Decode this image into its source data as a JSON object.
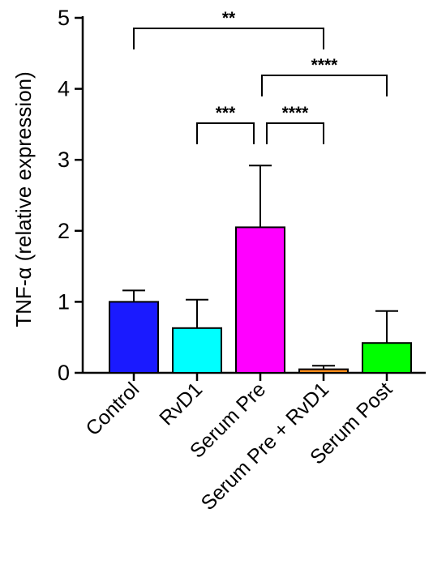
{
  "chart_data": {
    "type": "bar",
    "ylabel": "TNF-α (relative expression)",
    "xlabel": "",
    "ylim": [
      0,
      5
    ],
    "yticks": [
      0,
      1,
      2,
      3,
      4,
      5
    ],
    "categories": [
      "Control",
      "RvD1",
      "Serum Pre",
      "Serum Pre + RvD1",
      "Serum Post"
    ],
    "values": [
      1.0,
      0.63,
      2.05,
      0.05,
      0.42
    ],
    "errors": [
      0.16,
      0.4,
      0.87,
      0.05,
      0.45
    ],
    "colors": [
      "#1a1aff",
      "#00ffff",
      "#ff00ff",
      "#ff8c1a",
      "#00ff00"
    ],
    "grid": false,
    "significance": [
      {
        "from": 0,
        "to": 3,
        "label": "**"
      },
      {
        "from": 2,
        "to": 4,
        "label": "****"
      },
      {
        "from": 1,
        "to": 2,
        "label": "***"
      },
      {
        "from": 2,
        "to": 3,
        "label": "****"
      }
    ]
  }
}
